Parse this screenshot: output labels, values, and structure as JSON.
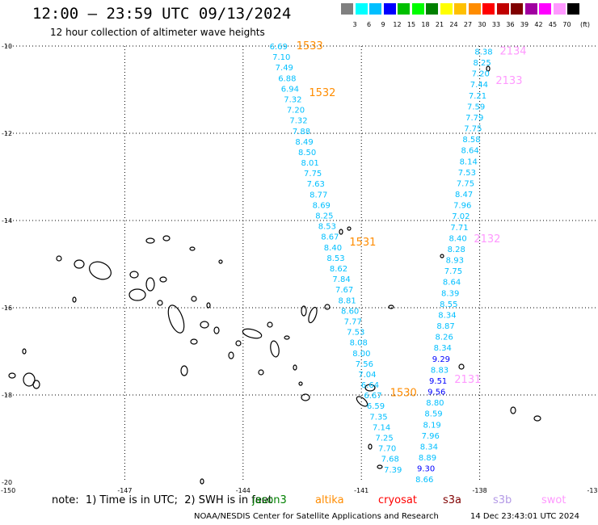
{
  "title": "12:00 — 23:59 UTC 09/13/2024",
  "subtitle": "12 hour collection of altimeter wave heights",
  "legend": {
    "colors": [
      "#808080",
      "#00ffff",
      "#00bfff",
      "#0000ff",
      "#00c000",
      "#00ff00",
      "#008000",
      "#ffff00",
      "#ffc000",
      "#ff8c00",
      "#ff0000",
      "#c00000",
      "#800000",
      "#a000a0",
      "#ff00ff",
      "#ff99ff",
      "#000000"
    ],
    "labels": [
      "3",
      "6",
      "9",
      "12",
      "15",
      "18",
      "21",
      "24",
      "27",
      "30",
      "33",
      "36",
      "39",
      "42",
      "45",
      "70"
    ],
    "unit": "(ft)"
  },
  "axes": {
    "lon_labels": [
      "-150",
      "-147",
      "-144",
      "-141",
      "-138",
      "-13"
    ],
    "lat_labels": [
      "-10",
      "-12",
      "-14",
      "-16",
      "-18",
      "-20"
    ]
  },
  "note": "note:  1) Time is in UTC;  2) SWH is in feet",
  "satellites": [
    {
      "name": "jason3",
      "color": "#008000"
    },
    {
      "name": "altika",
      "color": "#ff8c00"
    },
    {
      "name": "cryosat",
      "color": "#ff0000"
    },
    {
      "name": "s3a",
      "color": "#800000"
    },
    {
      "name": "s3b",
      "color": "#b399e6"
    },
    {
      "name": "swot",
      "color": "#ff99ff"
    }
  ],
  "credit": "NOAA/NESDIS Center for Satellite Applications and Research",
  "timestamp": "14 Dec 23:43:01 UTC 2024",
  "tracks": [
    {
      "name": "altika-track",
      "segments": [
        "1533",
        "1532",
        "1531",
        "1530"
      ],
      "segment_color": "#ff8c00",
      "values": [
        "6.69",
        "7.10",
        "7.49",
        "6.88",
        "6.94",
        "7.32",
        "7.20",
        "7.32",
        "7.88",
        "8.49",
        "8.50",
        "8.01",
        "7.75",
        "7.63",
        "8.77",
        "8.69",
        "8.25",
        "8.53",
        "8.67",
        "8.40",
        "8.53",
        "8.62",
        "7.84",
        "7.67",
        "8.81",
        "8.60",
        "7.77",
        "7.53",
        "8.08",
        "8.00",
        "7.56",
        "7.04",
        "6.64",
        "6.67",
        "6.59",
        "7.35",
        "7.14",
        "7.25",
        "7.70",
        "7.68",
        "7.39"
      ]
    },
    {
      "name": "swot-track",
      "segments": [
        "2134",
        "2133",
        "2132",
        "2131"
      ],
      "segment_color": "#ff99ff",
      "values": [
        "8.38",
        "8.25",
        "7.20",
        "7.44",
        "7.21",
        "7.59",
        "7.79",
        "7.75",
        "8.58",
        "8.64",
        "8.14",
        "7.53",
        "7.75",
        "8.47",
        "7.96",
        "7.02",
        "7.71",
        "8.40",
        "8.28",
        "8.93",
        "7.75",
        "8.64",
        "8.39",
        "8.55",
        "8.34",
        "8.87",
        "8.26",
        "8.34",
        "9.29",
        "8.83",
        "9.51",
        "9.56",
        "8.80",
        "8.59",
        "8.19",
        "7.96",
        "8.34",
        "8.89",
        "9.30",
        "8.66"
      ]
    }
  ]
}
